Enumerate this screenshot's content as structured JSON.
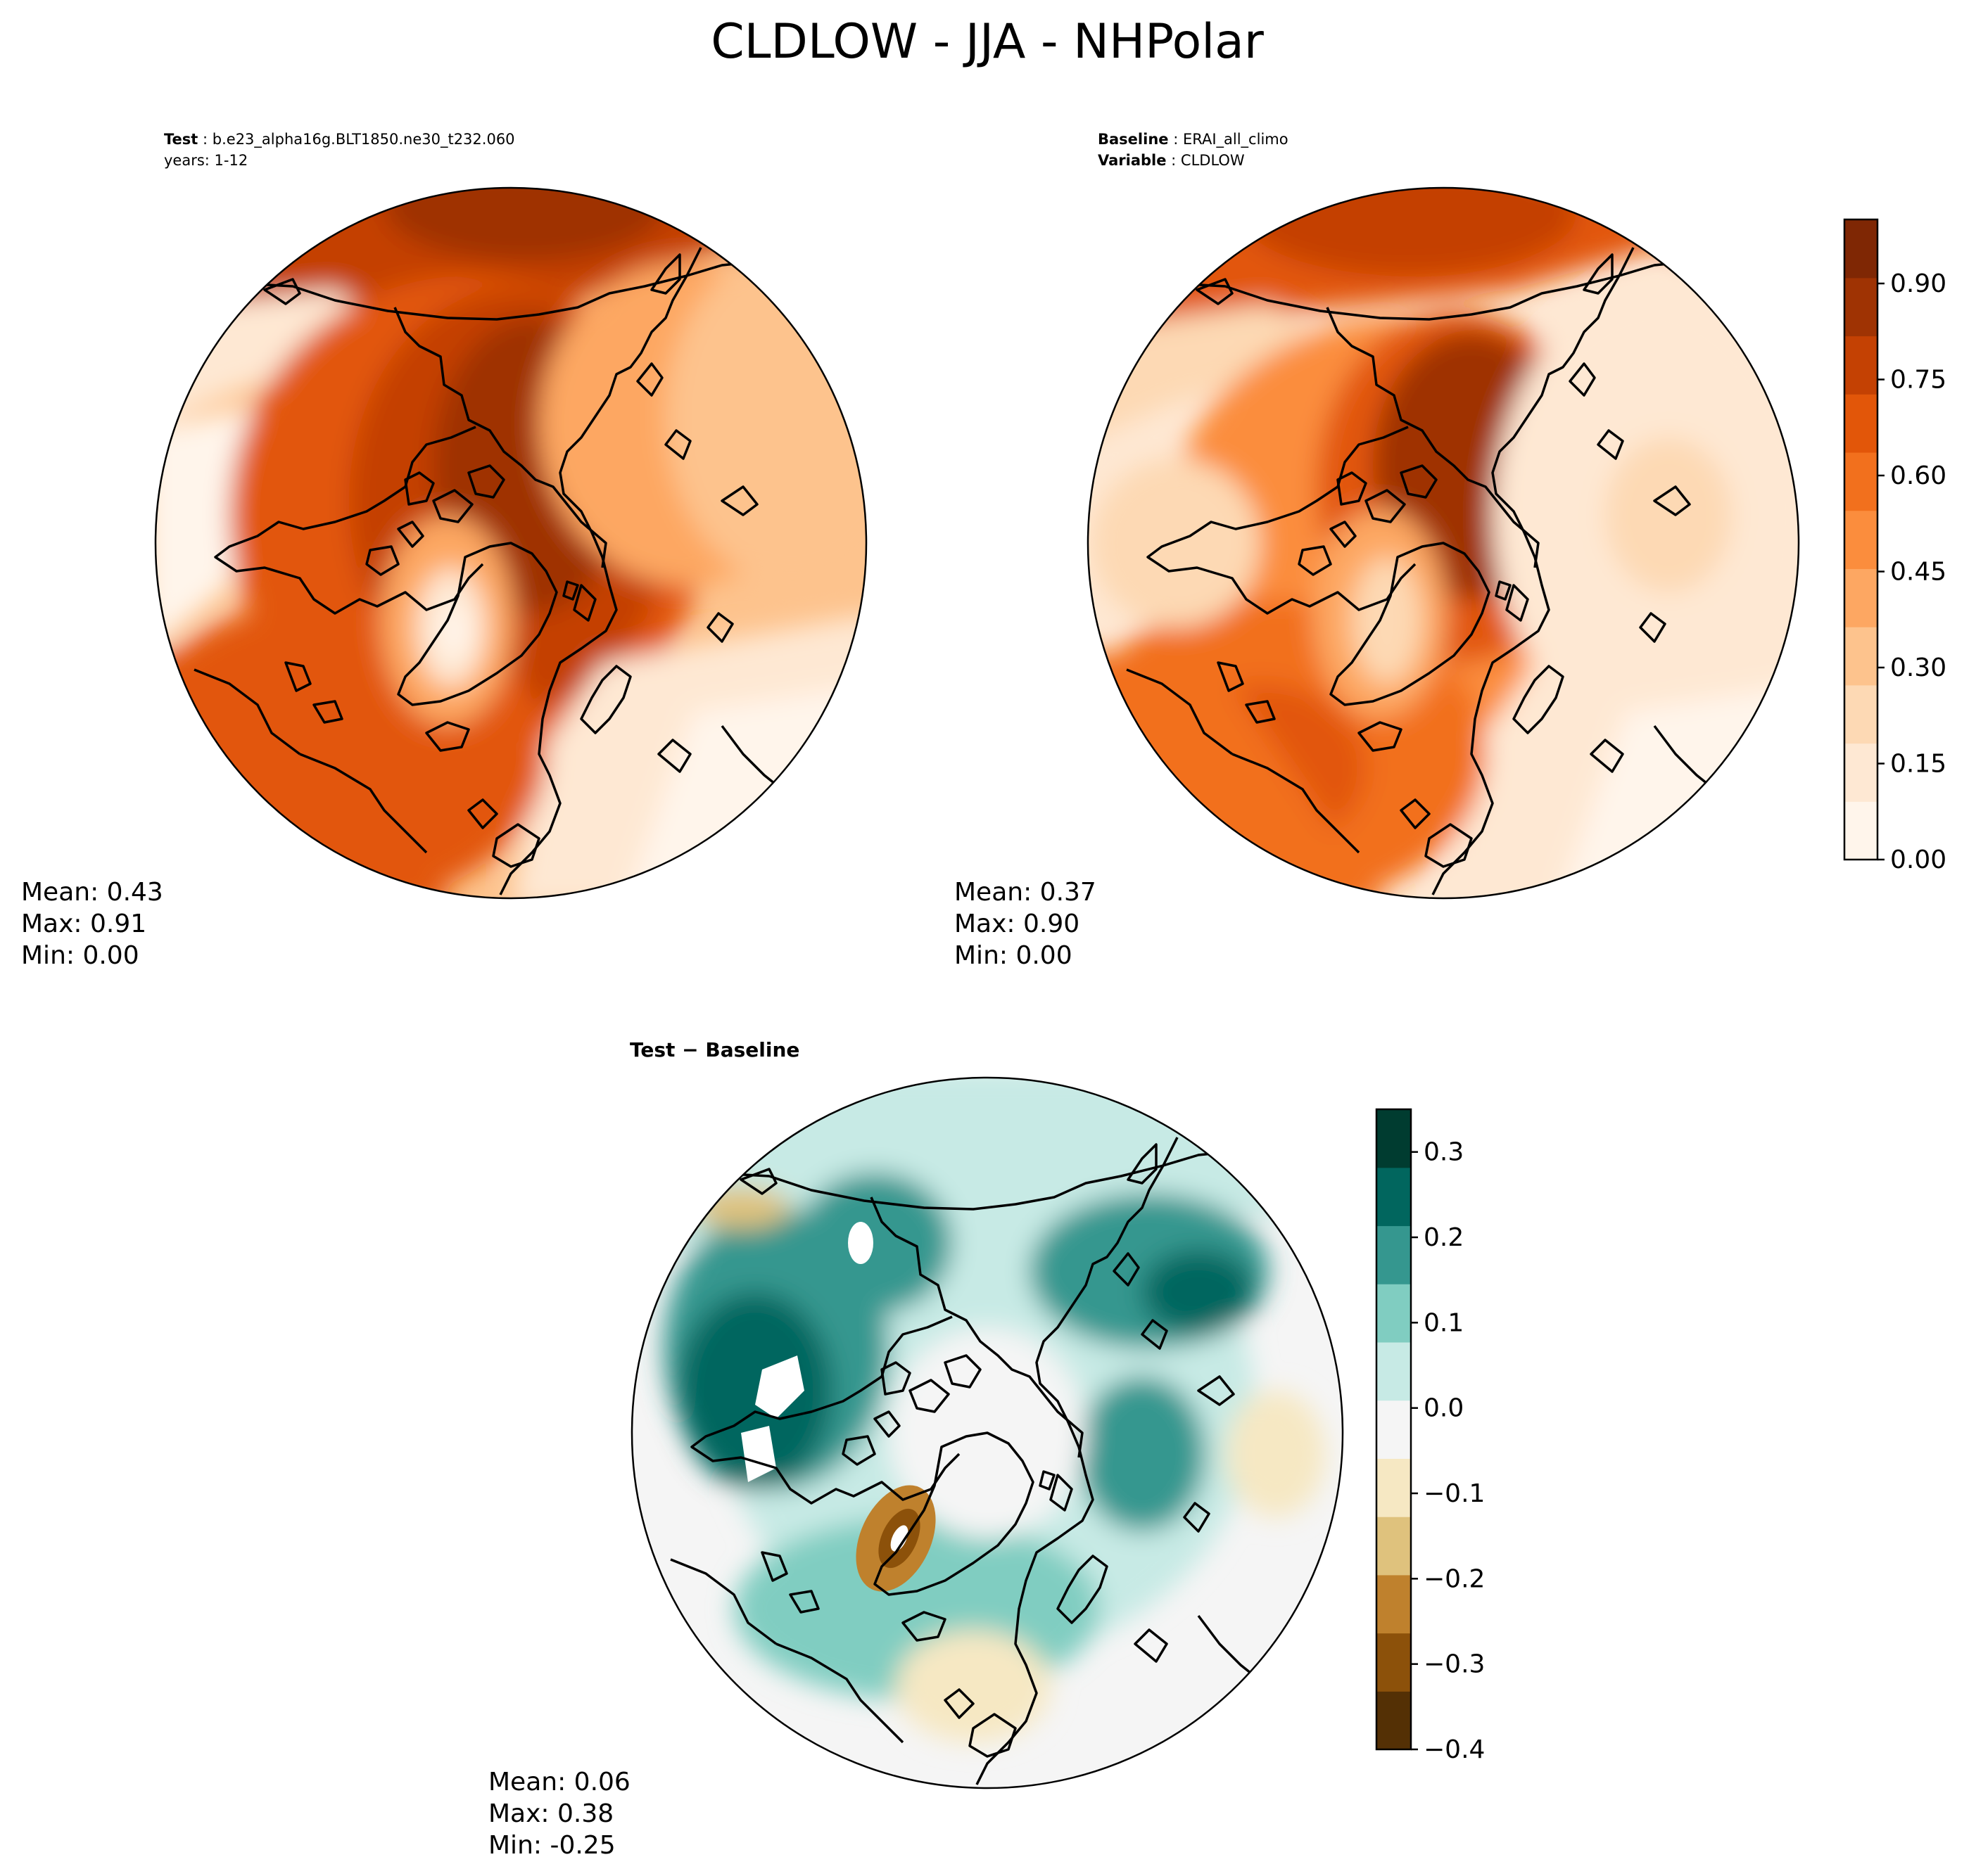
{
  "figure": {
    "title": "CLDLOW - JJA - NHPolar"
  },
  "panels": {
    "test": {
      "label": "Test",
      "name": "b.e23_alpha16g.BLT1850.ne30_t232.060",
      "line2": "years: 1-12",
      "stats": {
        "mean": "Mean:  0.43",
        "max": "Max:  0.91",
        "min": "Min:  0.00"
      }
    },
    "baseline": {
      "label": "Baseline",
      "name": "ERAI_all_climo",
      "var_label": "Variable",
      "var_name": "CLDLOW",
      "stats": {
        "mean": "Mean:  0.37",
        "max": "Max:  0.90",
        "min": "Min:  0.00"
      }
    },
    "diff": {
      "title": "Test − Baseline",
      "stats": {
        "mean": "Mean:  0.06",
        "max": "Max:  0.38",
        "min": "Min: -0.25"
      }
    }
  },
  "colors": {
    "oranges": [
      "#fff5eb",
      "#fee8d3",
      "#fdd9b4",
      "#fdc38d",
      "#fda762",
      "#fb8d3d",
      "#f2701d",
      "#e25609",
      "#c44103",
      "#9f3303",
      "#7f2704"
    ],
    "brbg": [
      "#543005",
      "#8c510a",
      "#bf812d",
      "#dfc27d",
      "#f6e8c3",
      "#f5f5f5",
      "#c7eae5",
      "#80cdc1",
      "#35978f",
      "#01665e",
      "#003c30"
    ],
    "coast": "#000000"
  },
  "chart_data": [
    {
      "type": "heatmap",
      "name": "test_map",
      "projection": "north-polar-stereographic",
      "colorbar": "shared-with-baseline",
      "summary": {
        "mean": 0.43,
        "max": 0.91,
        "min": 0.0
      }
    },
    {
      "type": "heatmap",
      "name": "baseline_map",
      "projection": "north-polar-stereographic",
      "colorbar": {
        "range": [
          0.0,
          1.0
        ],
        "ticks": [
          0.0,
          0.15,
          0.3,
          0.45,
          0.6,
          0.75,
          0.9
        ],
        "tick_labels": [
          "0.00",
          "0.15",
          "0.30",
          "0.45",
          "0.60",
          "0.75",
          "0.90"
        ]
      },
      "summary": {
        "mean": 0.37,
        "max": 0.9,
        "min": 0.0
      }
    },
    {
      "type": "heatmap",
      "name": "difference_map",
      "projection": "north-polar-stereographic",
      "colorbar": {
        "range": [
          -0.4,
          0.35
        ],
        "ticks": [
          -0.4,
          -0.3,
          -0.2,
          -0.1,
          0.0,
          0.1,
          0.2,
          0.3
        ],
        "tick_labels": [
          "−0.4",
          "−0.3",
          "−0.2",
          "−0.1",
          "0.0",
          "0.1",
          "0.2",
          "0.3"
        ]
      },
      "summary": {
        "mean": 0.06,
        "max": 0.38,
        "min": -0.25
      }
    }
  ]
}
